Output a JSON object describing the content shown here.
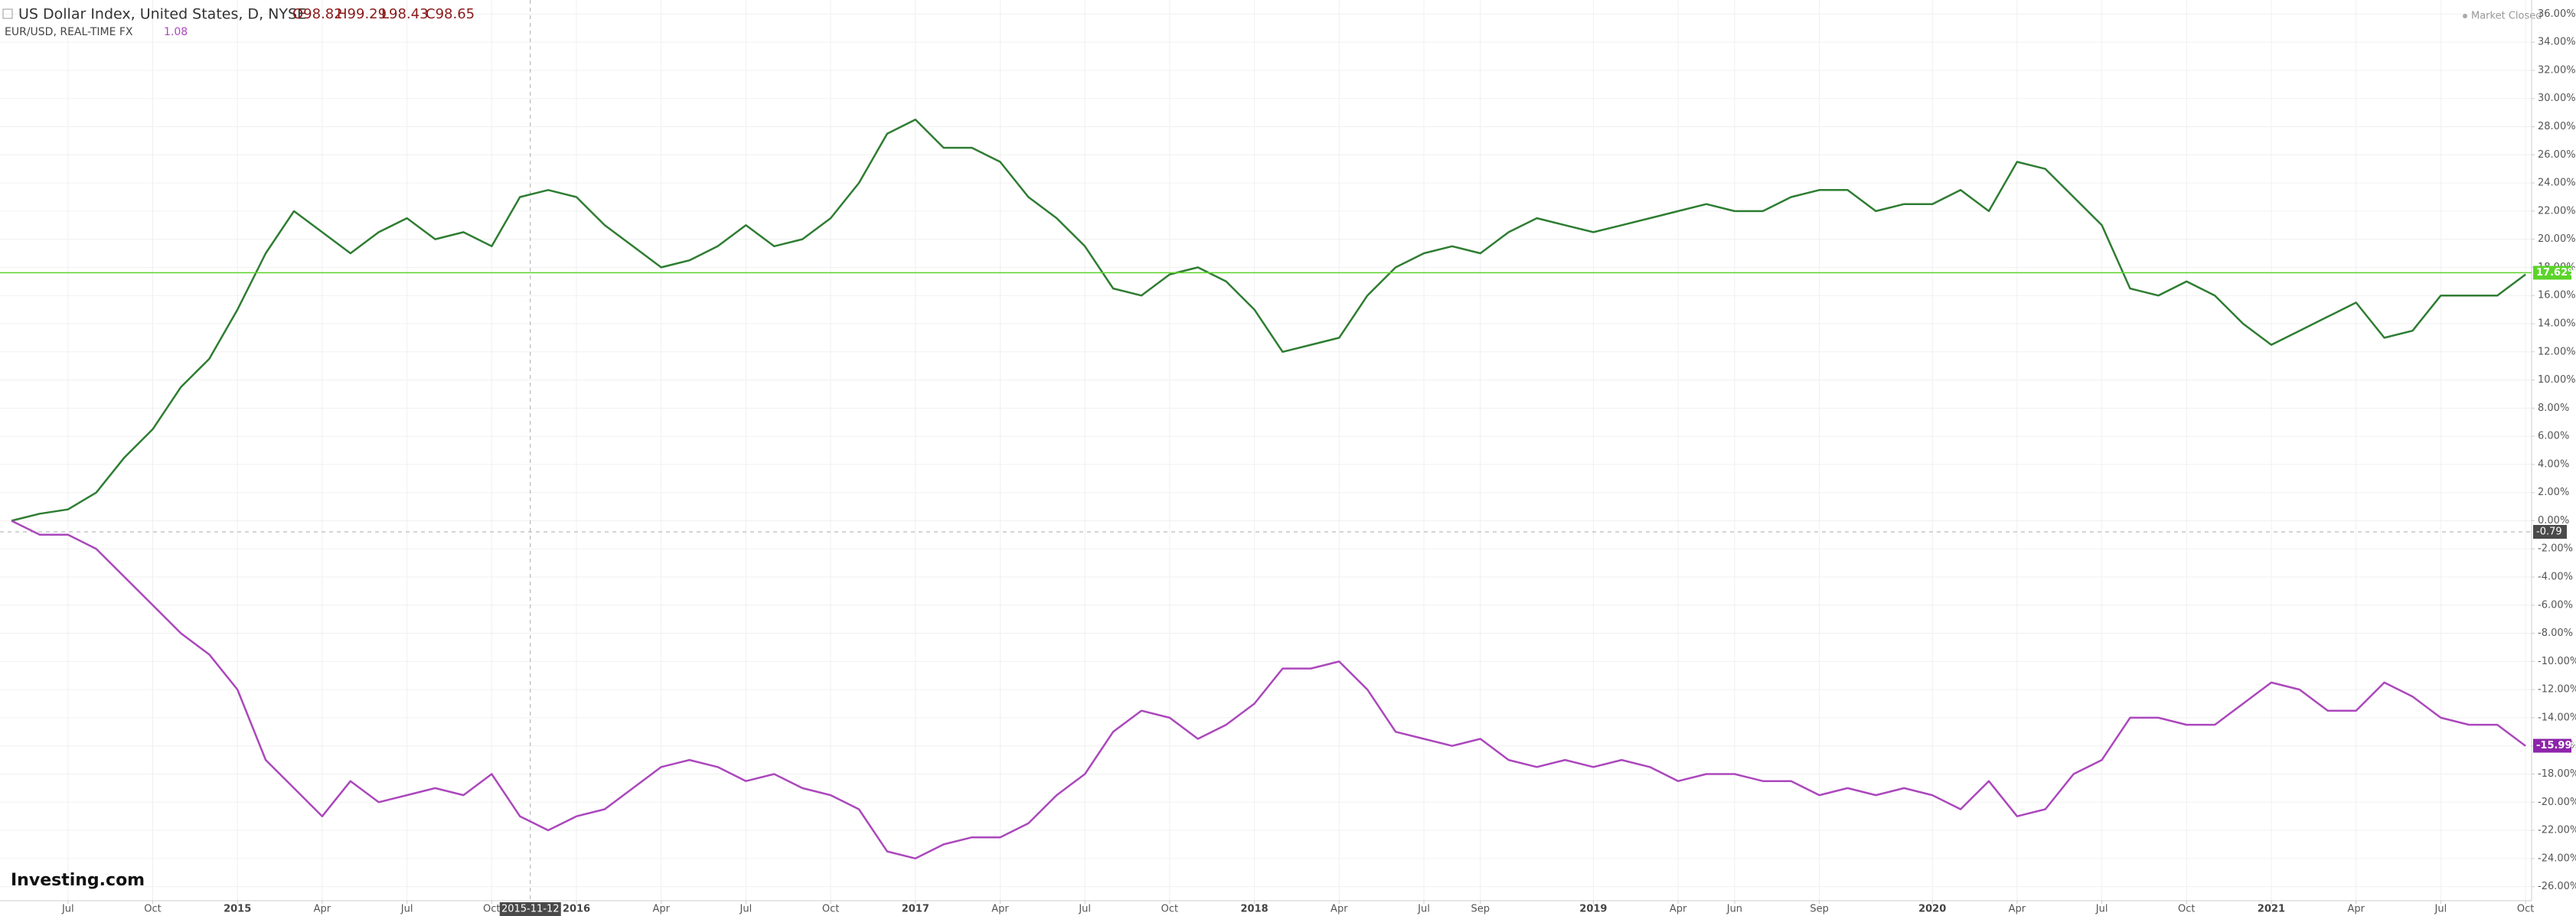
{
  "chart_data": {
    "type": "line",
    "title": "US Dollar Index, United States, D, NYSE",
    "ohlc_labels": [
      "O98.82",
      "H99.29",
      "L98.43",
      "C98.65"
    ],
    "subtitle": "EUR/USD, REAL-TIME FX",
    "subtitle_value": 1.08,
    "status": "Market Closed",
    "logo": "Investing.com",
    "crosshair_x_label": "2015-11-12",
    "crosshair_y": -0.79,
    "crosshair_y_label": "-0.79",
    "grid": true,
    "categories": [
      null,
      null,
      "Jul",
      null,
      null,
      "Oct",
      null,
      null,
      "2015",
      null,
      null,
      "Apr",
      null,
      null,
      "Jul",
      null,
      null,
      "Oct",
      null,
      null,
      "2016",
      null,
      null,
      "Apr",
      null,
      null,
      "Jul",
      null,
      null,
      "Oct",
      null,
      null,
      "2017",
      null,
      null,
      "Apr",
      null,
      null,
      "Jul",
      null,
      null,
      "Oct",
      null,
      null,
      "2018",
      null,
      null,
      "Apr",
      null,
      null,
      "Jul",
      null,
      "Sep",
      null,
      null,
      null,
      "2019",
      null,
      null,
      "Apr",
      null,
      "Jun",
      null,
      null,
      "Sep",
      null,
      null,
      null,
      "2020",
      null,
      null,
      "Apr",
      null,
      null,
      "Jul",
      null,
      null,
      "Oct",
      null,
      null,
      "2021",
      null,
      null,
      "Apr",
      null,
      null,
      "Jul",
      null,
      null,
      "Oct"
    ],
    "series": [
      {
        "name": "US Dollar Index",
        "color": "#2e7d32",
        "last_value": 17.62,
        "last_label": "17.62%",
        "last_color": "#5bd42a",
        "values": [
          0,
          0.5,
          0.8,
          2,
          4.5,
          6.5,
          9.5,
          11.5,
          15,
          19,
          22,
          20.5,
          19,
          20.5,
          21.5,
          20,
          20.5,
          19.5,
          23,
          23.5,
          23,
          21,
          19.5,
          18,
          18.5,
          19.5,
          21,
          19.5,
          20,
          21.5,
          24,
          27.5,
          28.5,
          26.5,
          26.5,
          25.5,
          23,
          21.5,
          19.5,
          16.5,
          16,
          17.5,
          18,
          17,
          15,
          12,
          12.5,
          13,
          16,
          18,
          19,
          19.5,
          19,
          20.5,
          21.5,
          21,
          20.5,
          21,
          21.5,
          22,
          22.5,
          22,
          22,
          23,
          23.5,
          23.5,
          22,
          22.5,
          22.5,
          23.5,
          22,
          25.5,
          25,
          23,
          21,
          16.5,
          16,
          17,
          16,
          14,
          12.5,
          13.5,
          14.5,
          15.5,
          13,
          13.5,
          16,
          16,
          16,
          17.5
        ]
      },
      {
        "name": "EUR/USD",
        "color": "#ab47bc",
        "last_value": -15.99,
        "last_label": "-15.99%",
        "last_color": "#8e24aa",
        "values": [
          0,
          -1,
          -1,
          -2,
          -4,
          -6,
          -8,
          -9.5,
          -12,
          -17,
          -19,
          -21,
          -18.5,
          -20,
          -19.5,
          -19,
          -19.5,
          -18,
          -21,
          -22,
          -21,
          -20.5,
          -19,
          -17.5,
          -17,
          -17.5,
          -18.5,
          -18,
          -19,
          -19.5,
          -20.5,
          -23.5,
          -24,
          -23,
          -22.5,
          -22.5,
          -21.5,
          -19.5,
          -18,
          -15,
          -13.5,
          -14,
          -15.5,
          -14.5,
          -13,
          -10.5,
          -10.5,
          -10,
          -12,
          -15,
          -15.5,
          -16,
          -15.5,
          -17,
          -17.5,
          -17,
          -17.5,
          -17,
          -17.5,
          -18.5,
          -18,
          -18,
          -18.5,
          -18.5,
          -19.5,
          -19,
          -19.5,
          -19,
          -19.5,
          -20.5,
          -18.5,
          -21,
          -20.5,
          -18,
          -17,
          -14,
          -14,
          -14.5,
          -14.5,
          -13,
          -11.5,
          -12,
          -13.5,
          -13.5,
          -11.5,
          -12.5,
          -14,
          -14.5,
          -14.5,
          -16
        ]
      }
    ],
    "ylim": [
      -27,
      37
    ],
    "yticks": [
      {
        "value": 36,
        "label": "36.00%"
      },
      {
        "value": 34,
        "label": "34.00%"
      },
      {
        "value": 32,
        "label": "32.00%"
      },
      {
        "value": 30,
        "label": "30.00%"
      },
      {
        "value": 28,
        "label": "28.00%"
      },
      {
        "value": 26,
        "label": "26.00%"
      },
      {
        "value": 24,
        "label": "24.00%"
      },
      {
        "value": 22,
        "label": "22.00%"
      },
      {
        "value": 20,
        "label": "20.00%"
      },
      {
        "value": 18,
        "label": "18.00%"
      },
      {
        "value": 16,
        "label": "16.00%"
      },
      {
        "value": 14,
        "label": "14.00%"
      },
      {
        "value": 12,
        "label": "12.00%"
      },
      {
        "value": 10,
        "label": "10.00%"
      },
      {
        "value": 8,
        "label": "8.00%"
      },
      {
        "value": 6,
        "label": "6.00%"
      },
      {
        "value": 4,
        "label": "4.00%"
      },
      {
        "value": 2,
        "label": "2.00%"
      },
      {
        "value": 0,
        "label": "0.00%"
      },
      {
        "value": -2,
        "label": "-2.00%"
      },
      {
        "value": -4,
        "label": "-4.00%"
      },
      {
        "value": -6,
        "label": "-6.00%"
      },
      {
        "value": -8,
        "label": "-8.00%"
      },
      {
        "value": -10,
        "label": "-10.00%"
      },
      {
        "value": -12,
        "label": "-12.00%"
      },
      {
        "value": -14,
        "label": "-14.00%"
      },
      {
        "value": -16,
        "label": "-16.00%"
      },
      {
        "value": -18,
        "label": "-18.00%"
      },
      {
        "value": -20,
        "label": "-20.00%"
      },
      {
        "value": -22,
        "label": "-22.00%"
      },
      {
        "value": -24,
        "label": "-24.00%"
      },
      {
        "value": -26,
        "label": "-26.00%"
      }
    ]
  }
}
